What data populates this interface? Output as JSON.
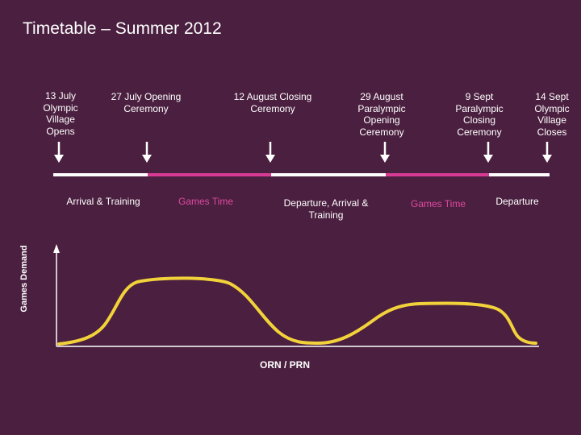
{
  "title": "Timetable – Summer 2012",
  "milestones": [
    {
      "label": "13 July\nOlympic\nVillage\nOpens"
    },
    {
      "label": "27 July Opening\nCeremony"
    },
    {
      "label": "12 August Closing\nCeremony"
    },
    {
      "label": "29 August\nParalympic\nOpening\nCeremony"
    },
    {
      "label": "9 Sept\nParalympic\nClosing\nCeremony"
    },
    {
      "label": "14 Sept\nOlympic\nVillage\nCloses"
    }
  ],
  "periods": [
    {
      "label": "Arrival & Training",
      "color": "#ffffff"
    },
    {
      "label": "Games Time",
      "color": "#e04aa2"
    },
    {
      "label": "Departure, Arrival &\nTraining",
      "color": "#ffffff"
    },
    {
      "label": "Games Time",
      "color": "#e04aa2"
    },
    {
      "label": "Departure",
      "color": "#ffffff"
    }
  ],
  "chart": {
    "ylabel": "Games Demand",
    "xlabel": "ORN / PRN",
    "curve_color": "#f2d23a"
  },
  "colors": {
    "background": "#4a1f3f",
    "timeline_white": "#ffffff",
    "timeline_pink": "#d83a94"
  }
}
